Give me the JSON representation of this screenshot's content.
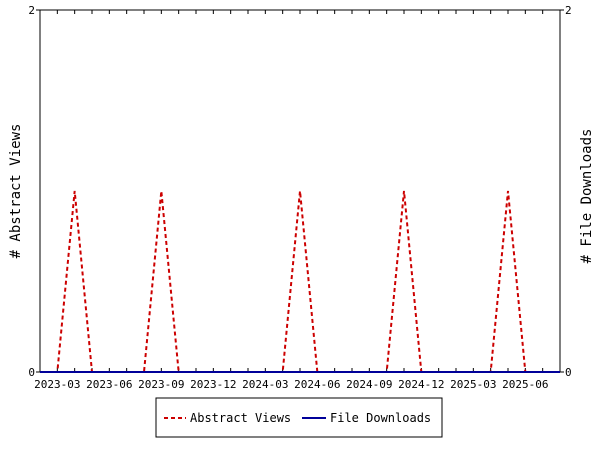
{
  "chart_data": {
    "type": "line",
    "ylabel_left": "# Abstract Views",
    "ylabel_right": "# File Downloads",
    "x_tick_labels": [
      "2023-03",
      "2023-06",
      "2023-09",
      "2023-12",
      "2024-03",
      "2024-06",
      "2024-09",
      "2024-12",
      "2025-03",
      "2025-06"
    ],
    "y_left_ticks": [
      "0",
      "2"
    ],
    "y_right_ticks": [
      "0",
      "2"
    ],
    "ylim_left": [
      0,
      2
    ],
    "ylim_right": [
      0,
      2
    ],
    "legend_position": "bottom-center",
    "months": [
      "2023-02",
      "2023-03",
      "2023-04",
      "2023-05",
      "2023-06",
      "2023-07",
      "2023-08",
      "2023-09",
      "2023-10",
      "2023-11",
      "2023-12",
      "2024-01",
      "2024-02",
      "2024-03",
      "2024-04",
      "2024-05",
      "2024-06",
      "2024-07",
      "2024-08",
      "2024-09",
      "2024-10",
      "2024-11",
      "2024-12",
      "2025-01",
      "2025-02",
      "2025-03",
      "2025-04",
      "2025-05",
      "2025-06",
      "2025-07",
      "2025-08"
    ],
    "series": [
      {
        "name": "Abstract Views",
        "color": "#cc0000",
        "style": "dashed",
        "axis": "left",
        "values": [
          0,
          0,
          1,
          0,
          0,
          0,
          0,
          1,
          0,
          0,
          0,
          0,
          0,
          0,
          0,
          1,
          0,
          0,
          0,
          0,
          0,
          1,
          0,
          0,
          0,
          0,
          0,
          1,
          0,
          0,
          0
        ]
      },
      {
        "name": "File Downloads",
        "color": "#000099",
        "style": "solid",
        "axis": "right",
        "values": [
          0,
          0,
          0,
          0,
          0,
          0,
          0,
          0,
          0,
          0,
          0,
          0,
          0,
          0,
          0,
          0,
          0,
          0,
          0,
          0,
          0,
          0,
          0,
          0,
          0,
          0,
          0,
          0,
          0,
          0,
          0
        ]
      }
    ]
  }
}
